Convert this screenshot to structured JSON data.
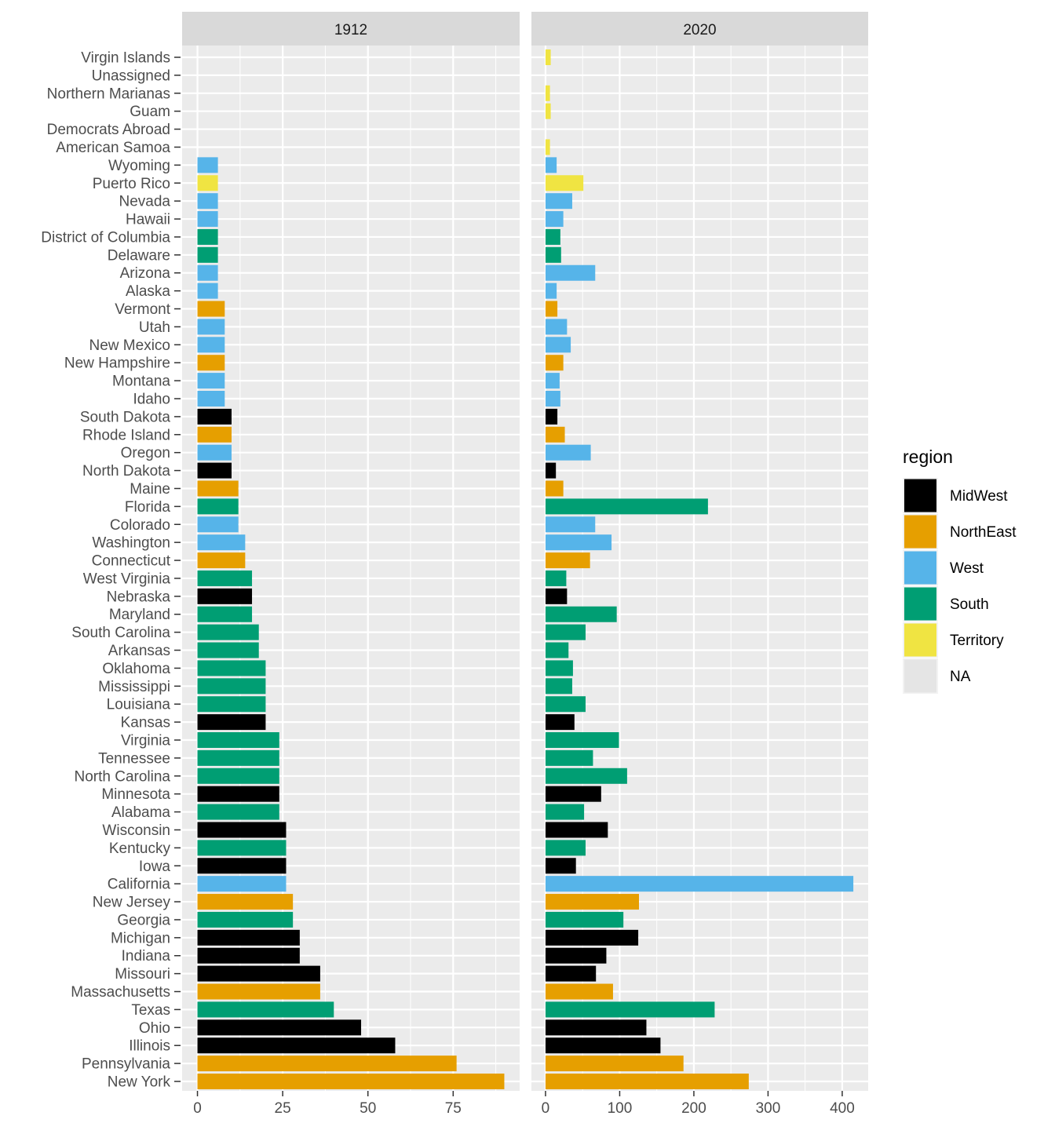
{
  "chart_data": {
    "type": "bar",
    "orientation": "horizontal",
    "facets": [
      "1912",
      "2020"
    ],
    "categories": [
      "Virgin Islands",
      "Unassigned",
      "Northern Marianas",
      "Guam",
      "Democrats Abroad",
      "American Samoa",
      "Wyoming",
      "Puerto Rico",
      "Nevada",
      "Hawaii",
      "District of Columbia",
      "Delaware",
      "Arizona",
      "Alaska",
      "Vermont",
      "Utah",
      "New Mexico",
      "New Hampshire",
      "Montana",
      "Idaho",
      "South Dakota",
      "Rhode Island",
      "Oregon",
      "North Dakota",
      "Maine",
      "Florida",
      "Colorado",
      "Washington",
      "Connecticut",
      "West Virginia",
      "Nebraska",
      "Maryland",
      "South Carolina",
      "Arkansas",
      "Oklahoma",
      "Mississippi",
      "Louisiana",
      "Kansas",
      "Virginia",
      "Tennessee",
      "North Carolina",
      "Minnesota",
      "Alabama",
      "Wisconsin",
      "Kentucky",
      "Iowa",
      "California",
      "New Jersey",
      "Georgia",
      "Michigan",
      "Indiana",
      "Missouri",
      "Massachusetts",
      "Texas",
      "Ohio",
      "Illinois",
      "Pennsylvania",
      "New York"
    ],
    "regions": [
      "Territory",
      null,
      "Territory",
      "Territory",
      null,
      "Territory",
      "West",
      "Territory",
      "West",
      "West",
      "South",
      "South",
      "West",
      "West",
      "NorthEast",
      "West",
      "West",
      "NorthEast",
      "West",
      "West",
      "MidWest",
      "NorthEast",
      "West",
      "MidWest",
      "NorthEast",
      "South",
      "West",
      "West",
      "NorthEast",
      "South",
      "MidWest",
      "South",
      "South",
      "South",
      "South",
      "South",
      "South",
      "MidWest",
      "South",
      "South",
      "South",
      "MidWest",
      "South",
      "MidWest",
      "South",
      "MidWest",
      "West",
      "NorthEast",
      "South",
      "MidWest",
      "MidWest",
      "MidWest",
      "NorthEast",
      "South",
      "MidWest",
      "MidWest",
      "NorthEast",
      "NorthEast"
    ],
    "series": [
      {
        "facet": "1912",
        "values": [
          null,
          null,
          null,
          null,
          null,
          null,
          6,
          6,
          6,
          6,
          6,
          6,
          6,
          6,
          8,
          8,
          8,
          8,
          8,
          8,
          10,
          10,
          10,
          10,
          12,
          12,
          12,
          14,
          14,
          16,
          16,
          16,
          18,
          18,
          20,
          20,
          20,
          20,
          24,
          24,
          24,
          24,
          24,
          26,
          26,
          26,
          26,
          28,
          28,
          30,
          30,
          36,
          36,
          40,
          48,
          58,
          76,
          90
        ]
      },
      {
        "facet": "2020",
        "values": [
          7,
          null,
          6,
          7,
          null,
          6,
          15,
          51,
          36,
          24,
          20,
          21,
          67,
          15,
          16,
          29,
          34,
          24,
          19,
          20,
          16,
          26,
          61,
          14,
          24,
          219,
          67,
          89,
          60,
          28,
          29,
          96,
          54,
          31,
          37,
          36,
          54,
          39,
          99,
          64,
          110,
          75,
          52,
          84,
          54,
          41,
          415,
          126,
          105,
          125,
          82,
          68,
          91,
          228,
          136,
          155,
          186,
          274
        ]
      }
    ],
    "axes": [
      {
        "facet": "1912",
        "xlim": [
          -4.5,
          94.5
        ],
        "ticks": [
          0,
          25,
          50,
          75
        ],
        "tick_labels": [
          "0",
          "25",
          "50",
          "75"
        ]
      },
      {
        "facet": "2020",
        "xlim": [
          -19,
          435
        ],
        "ticks": [
          0,
          100,
          200,
          300,
          400
        ],
        "tick_labels": [
          "0",
          "100",
          "200",
          "300",
          "400"
        ]
      }
    ],
    "grid": true,
    "legend": {
      "title": "region",
      "position": "right",
      "entries": [
        {
          "label": "MidWest",
          "key": "MidWest",
          "color": "#000000"
        },
        {
          "label": "NorthEast",
          "key": "NorthEast",
          "color": "#E69F00"
        },
        {
          "label": "West",
          "key": "West",
          "color": "#56B4E9"
        },
        {
          "label": "South",
          "key": "South",
          "color": "#009E73"
        },
        {
          "label": "Territory",
          "key": "Territory",
          "color": "#F0E442"
        },
        {
          "label": "NA",
          "key": "NA",
          "color": "#E5E5E5"
        }
      ]
    }
  }
}
